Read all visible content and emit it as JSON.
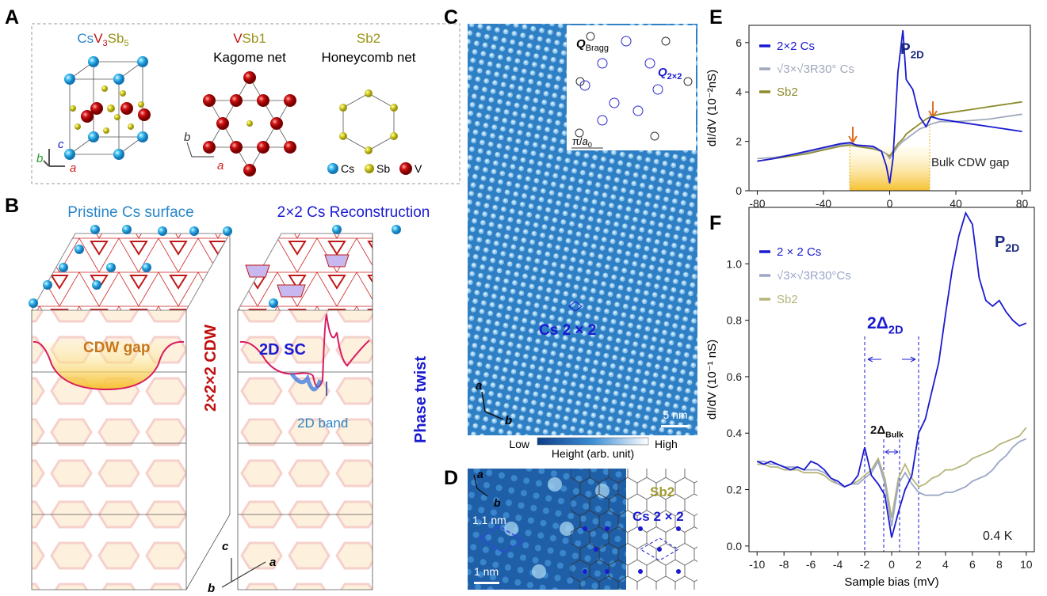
{
  "panel_a": {
    "label": "A",
    "formula": [
      "Cs",
      "V",
      "3",
      "Sb",
      "5"
    ],
    "kagome_title": [
      "V",
      "Sb1"
    ],
    "kagome_subtitle": "Kagome net",
    "honeycomb_title": "Sb2",
    "honeycomb_subtitle": "Honeycomb net",
    "axes_left": [
      "c",
      "b",
      "a"
    ],
    "axes_kagome": [
      "b",
      "a"
    ],
    "legend": [
      "Cs",
      "Sb",
      "V"
    ]
  },
  "panel_b": {
    "label": "B",
    "left_title": "Pristine Cs surface",
    "right_title": "2×2 Cs Reconstruction",
    "cdw_gap": "CDW gap",
    "cdw_label": "2×2×2 CDW",
    "sc_label": "2D SC",
    "band_label": "2D band",
    "twist_label": "Phase twist",
    "axes": [
      "c",
      "a",
      "b"
    ]
  },
  "panel_c": {
    "label": "C",
    "q_bragg": [
      "Q",
      "Bragg"
    ],
    "q_2x2": [
      "Q",
      "2×2"
    ],
    "scale_inset": [
      "π/",
      "a",
      "0"
    ],
    "cs_label": "Cs 2 × 2",
    "axes": [
      "a",
      "b"
    ],
    "scale_bar": "5 nm",
    "colorbar": {
      "low": "Low",
      "high": "High",
      "title": "Height (arb. unit)"
    }
  },
  "panel_d": {
    "label": "D",
    "axes": [
      "a",
      "b"
    ],
    "lattice": "1.1 nm",
    "scale_bar": "1 nm",
    "sb2": "Sb2",
    "cs_label": "Cs 2 × 2"
  },
  "chart_data": [
    {
      "type": "line",
      "panel_label": "E",
      "y_label": "dI/dV (10⁻²nS)",
      "x": [
        -80,
        -70,
        -60,
        -50,
        -40,
        -30,
        -24,
        -20,
        -10,
        -5,
        -2,
        0,
        2,
        5,
        8,
        10,
        14,
        18,
        22,
        25,
        30,
        40,
        50,
        60,
        70,
        80
      ],
      "series": [
        {
          "name": "2×2 Cs",
          "color": "#1a1ad0",
          "values": [
            1.2,
            1.3,
            1.45,
            1.6,
            1.75,
            1.9,
            1.95,
            1.85,
            1.8,
            1.6,
            1.0,
            0.3,
            1.3,
            4.8,
            6.5,
            4.5,
            4.1,
            3.0,
            2.6,
            3.0,
            2.9,
            2.8,
            2.7,
            2.6,
            2.5,
            2.4
          ]
        },
        {
          "name": "√3×√3R30° Cs",
          "color": "#a0a8bc",
          "values": [
            1.3,
            1.35,
            1.45,
            1.55,
            1.7,
            1.85,
            1.9,
            1.85,
            1.75,
            1.6,
            1.5,
            1.3,
            1.5,
            1.8,
            2.0,
            2.1,
            2.3,
            2.5,
            2.6,
            2.7,
            2.8,
            2.8,
            2.85,
            2.9,
            3.0,
            3.1
          ]
        },
        {
          "name": "Sb2",
          "color": "#8c8a2a",
          "values": [
            1.2,
            1.3,
            1.4,
            1.5,
            1.65,
            1.8,
            1.85,
            1.8,
            1.7,
            1.6,
            1.5,
            1.4,
            1.6,
            1.9,
            2.1,
            2.3,
            2.5,
            2.7,
            2.9,
            3.0,
            3.1,
            3.2,
            3.3,
            3.4,
            3.5,
            3.6
          ]
        }
      ],
      "xlim": [
        -85,
        85
      ],
      "xticks": [
        -80,
        -40,
        0,
        40,
        80
      ],
      "ylim": [
        0,
        6.7
      ],
      "yticks": [
        0,
        2,
        4,
        6
      ],
      "annotations": [
        {
          "text": "P",
          "sub": "2D"
        },
        {
          "text": "Bulk CDW gap"
        }
      ]
    },
    {
      "type": "line",
      "panel_label": "F",
      "x_label": "Sample bias (mV)",
      "y_label": "dI/dV (10⁻¹ nS)",
      "x": [
        -10,
        -9.5,
        -9,
        -8.5,
        -8,
        -7.5,
        -7,
        -6.5,
        -6,
        -5.5,
        -5,
        -4.5,
        -4,
        -3.5,
        -3,
        -2.5,
        -2,
        -1.5,
        -1,
        -0.5,
        0,
        0.5,
        1,
        1.5,
        2,
        2.5,
        3,
        3.5,
        4,
        4.5,
        5,
        5.5,
        6,
        6.5,
        7,
        7.5,
        8,
        8.5,
        9,
        9.5,
        10
      ],
      "series": [
        {
          "name": "2 × 2 Cs",
          "color": "#1a1ad0",
          "values": [
            0.3,
            0.29,
            0.3,
            0.29,
            0.28,
            0.27,
            0.28,
            0.27,
            0.3,
            0.29,
            0.27,
            0.24,
            0.23,
            0.21,
            0.22,
            0.25,
            0.35,
            0.25,
            0.22,
            0.18,
            0.03,
            0.12,
            0.2,
            0.25,
            0.4,
            0.45,
            0.55,
            0.65,
            0.82,
            0.98,
            1.1,
            1.18,
            1.14,
            0.95,
            0.87,
            0.85,
            0.87,
            0.83,
            0.8,
            0.78,
            0.79
          ]
        },
        {
          "name": "√3×√3R30°Cs",
          "color": "#9aa6c8",
          "values": [
            0.3,
            0.3,
            0.29,
            0.29,
            0.28,
            0.28,
            0.28,
            0.27,
            0.27,
            0.27,
            0.26,
            0.24,
            0.22,
            0.21,
            0.22,
            0.22,
            0.24,
            0.26,
            0.3,
            0.22,
            0.07,
            0.22,
            0.26,
            0.22,
            0.19,
            0.18,
            0.18,
            0.18,
            0.19,
            0.19,
            0.2,
            0.21,
            0.23,
            0.24,
            0.25,
            0.27,
            0.3,
            0.32,
            0.35,
            0.37,
            0.38
          ]
        },
        {
          "name": "Sb2",
          "color": "#b5b47a",
          "values": [
            0.29,
            0.29,
            0.28,
            0.28,
            0.27,
            0.27,
            0.27,
            0.26,
            0.26,
            0.26,
            0.25,
            0.23,
            0.22,
            0.21,
            0.22,
            0.23,
            0.25,
            0.27,
            0.31,
            0.24,
            0.1,
            0.24,
            0.29,
            0.24,
            0.21,
            0.22,
            0.24,
            0.25,
            0.27,
            0.27,
            0.28,
            0.29,
            0.31,
            0.32,
            0.33,
            0.34,
            0.36,
            0.37,
            0.38,
            0.39,
            0.42
          ]
        }
      ],
      "xlim": [
        -10.6,
        10.6
      ],
      "xticks": [
        -10,
        -8,
        -6,
        -4,
        -2,
        0,
        2,
        4,
        6,
        8,
        10
      ],
      "ylim": [
        -0.02,
        1.2
      ],
      "yticks": [
        {
          "value": 0,
          "label": "0.0"
        },
        0.2,
        0.4,
        0.6,
        0.8,
        {
          "value": 1,
          "label": "1.0"
        }
      ],
      "annotations": [
        {
          "text": "P",
          "sub": "2D"
        },
        {
          "text": "2Δ",
          "sub": "2D"
        },
        {
          "text": "2Δ",
          "sub": "Bulk"
        },
        {
          "text": "0.4 K"
        }
      ]
    }
  ]
}
